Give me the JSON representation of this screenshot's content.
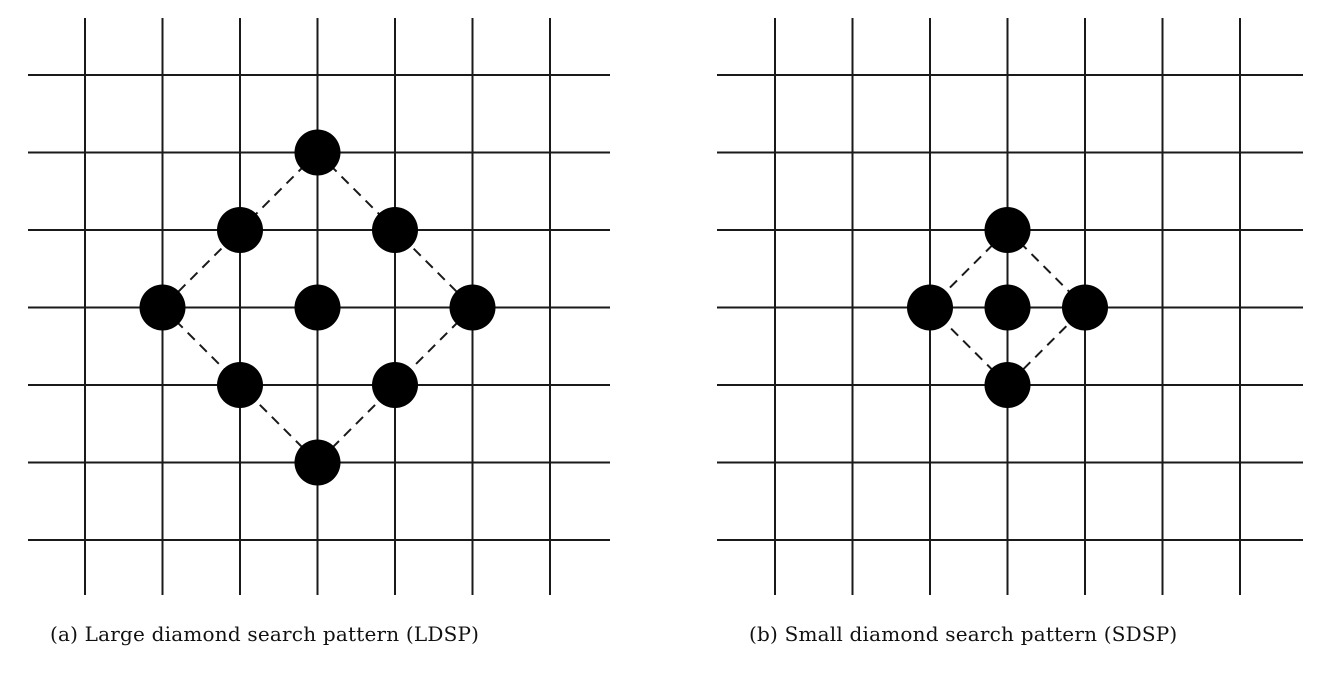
{
  "diagrams": [
    {
      "id": "ldsp",
      "caption": "(a) Large diamond search pattern (LDSP)",
      "grid": {
        "columns": 7,
        "rows": 7
      },
      "center": [
        3,
        3
      ],
      "points": [
        [
          0,
          -2
        ],
        [
          -1,
          -1
        ],
        [
          1,
          -1
        ],
        [
          -2,
          0
        ],
        [
          0,
          0
        ],
        [
          2,
          0
        ],
        [
          -1,
          1
        ],
        [
          1,
          1
        ],
        [
          0,
          2
        ]
      ],
      "outline": [
        [
          0,
          -2
        ],
        [
          2,
          0
        ],
        [
          0,
          2
        ],
        [
          -2,
          0
        ]
      ]
    },
    {
      "id": "sdsp",
      "caption": "(b) Small diamond search pattern (SDSP)",
      "grid": {
        "columns": 7,
        "rows": 7
      },
      "center": [
        3,
        3
      ],
      "points": [
        [
          0,
          -1
        ],
        [
          -1,
          0
        ],
        [
          0,
          0
        ],
        [
          1,
          0
        ],
        [
          0,
          1
        ]
      ],
      "outline": [
        [
          0,
          -1
        ],
        [
          1,
          0
        ],
        [
          0,
          1
        ],
        [
          -1,
          0
        ]
      ]
    }
  ],
  "colors": {
    "line": "#1a1a1a",
    "dot": "#000000",
    "background": "#ffffff"
  }
}
